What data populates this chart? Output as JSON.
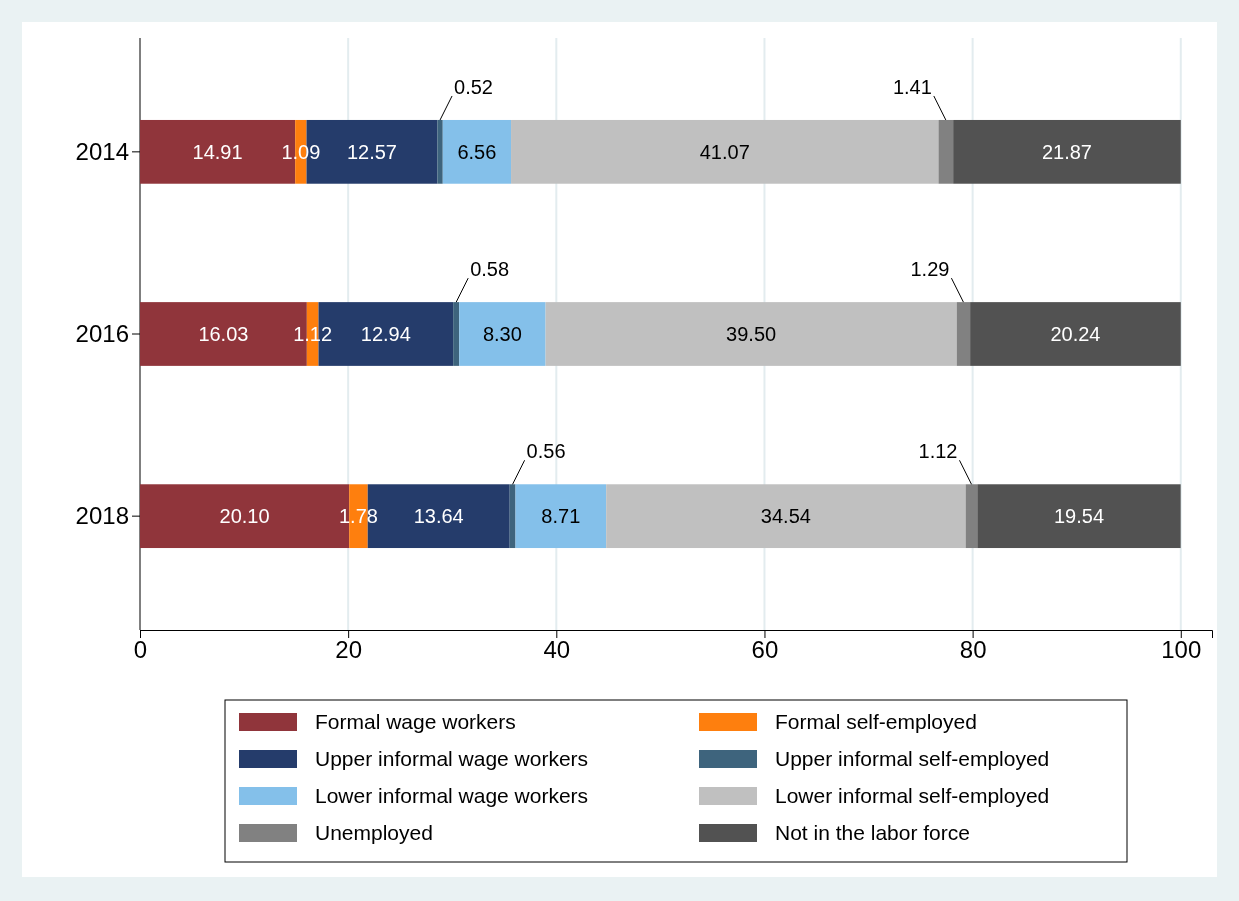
{
  "chart_data": {
    "type": "bar",
    "orientation": "horizontal",
    "stacked": true,
    "grid": "x",
    "legend": "bottom",
    "categories": [
      "2014",
      "2016",
      "2018"
    ],
    "xlim": [
      0,
      103
    ],
    "xticks": [
      0,
      20,
      40,
      60,
      80,
      100
    ],
    "series": [
      {
        "name": "Formal wage workers",
        "color": "#90353b",
        "values": [
          14.91,
          16.03,
          20.1
        ],
        "value_labels": [
          "14.91",
          "16.03",
          "20.10"
        ]
      },
      {
        "name": "Formal self-employed",
        "color": "#fe7f0e",
        "values": [
          1.09,
          1.12,
          1.78
        ],
        "value_labels": [
          "1.09",
          "1.12",
          "1.78"
        ]
      },
      {
        "name": "Upper informal wage workers",
        "color": "#253c6b",
        "values": [
          12.57,
          12.94,
          13.64
        ],
        "value_labels": [
          "12.57",
          "12.94",
          "13.64"
        ]
      },
      {
        "name": "Upper informal self-employed",
        "color": "#3e647d",
        "values": [
          0.52,
          0.58,
          0.56
        ],
        "value_labels": [
          "0.52",
          "0.58",
          "0.56"
        ]
      },
      {
        "name": "Lower informal wage workers",
        "color": "#84c0ea",
        "values": [
          6.56,
          8.3,
          8.71
        ],
        "value_labels": [
          "6.56",
          "8.30",
          "8.71"
        ]
      },
      {
        "name": "Lower informal self-employed",
        "color": "#c0c0c0",
        "values": [
          41.07,
          39.5,
          34.54
        ],
        "value_labels": [
          "41.07",
          "39.50",
          "34.54"
        ]
      },
      {
        "name": "Unemployed",
        "color": "#818181",
        "values": [
          1.41,
          1.29,
          1.12
        ],
        "value_labels": [
          "1.41",
          "1.29",
          "1.12"
        ]
      },
      {
        "name": "Not in the labor force",
        "color": "#525252",
        "values": [
          21.87,
          20.24,
          19.54
        ],
        "value_labels": [
          "21.87",
          "20.24",
          "19.54"
        ]
      }
    ]
  }
}
